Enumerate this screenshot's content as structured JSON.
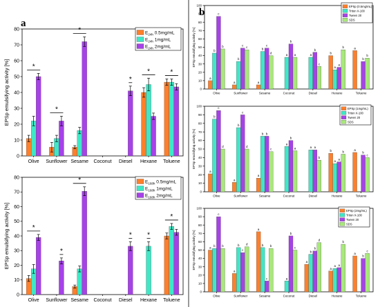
{
  "figure": {
    "panel_a_label": "a",
    "panel_b_label": "b"
  },
  "chart_data": [
    {
      "id": "a1",
      "type": "bar",
      "panel": "a",
      "categories": [
        "Olive",
        "Sunflower",
        "Sesame",
        "Coconut",
        "Diesel",
        "Hexane",
        "Toluene"
      ],
      "ylabel": "EPSp emulsifying activity [%]",
      "ylim": [
        0,
        80
      ],
      "yticks": [
        0,
        10,
        20,
        30,
        40,
        50,
        60,
        70,
        80
      ],
      "legend_position": "top-right",
      "grid": false,
      "series": [
        {
          "name": "E24h 0.5mg/mL",
          "name_base": "E",
          "name_sub": "24h",
          "name_rest": " 0.5mg/mL",
          "color": "#ff7f2a",
          "values": [
            11,
            5.5,
            5.5,
            null,
            null,
            40,
            46.5
          ],
          "errors": [
            2,
            3,
            1,
            null,
            null,
            3,
            2
          ]
        },
        {
          "name": "E24h 1mg/mL",
          "name_base": "E",
          "name_sub": "24h",
          "name_rest": " 1mg/mL",
          "color": "#3ee8c6",
          "values": [
            22,
            11,
            16,
            null,
            null,
            45,
            46.5
          ],
          "errors": [
            3,
            2,
            2,
            null,
            null,
            4,
            2
          ]
        },
        {
          "name": "E24h 2mg/mL",
          "name_base": "E",
          "name_sub": "24h",
          "name_rest": " 2mg/mL",
          "color": "#a642e8",
          "values": [
            50,
            22,
            72,
            null,
            41,
            25,
            43.5
          ],
          "errors": [
            2,
            3,
            3,
            null,
            3,
            2,
            2
          ]
        }
      ],
      "significance": [
        {
          "category": "Olive",
          "label": "*"
        },
        {
          "category": "Sunflower",
          "label": "*"
        },
        {
          "category": "Sesame",
          "label": "*"
        },
        {
          "category": "Diesel",
          "label": "*"
        },
        {
          "category": "Hexane",
          "label": "*"
        },
        {
          "category": "Toluene",
          "label": "*"
        }
      ]
    },
    {
      "id": "a2",
      "type": "bar",
      "panel": "a",
      "categories": [
        "Olive",
        "Sunflower",
        "Sesame",
        "Coconut",
        "Diesel",
        "Hexane",
        "Toluene"
      ],
      "ylabel": "EPSp emulsifying activity [%]",
      "ylim": [
        0,
        80
      ],
      "yticks": [
        0,
        10,
        20,
        30,
        40,
        50,
        60,
        70,
        80
      ],
      "legend_position": "top-right",
      "grid": false,
      "series": [
        {
          "name": "E168h 0.5mg/mL",
          "name_base": "E",
          "name_sub": "168h",
          "name_rest": " 0.5mg/mL",
          "color": "#ff7f2a",
          "values": [
            11,
            null,
            5.5,
            null,
            null,
            null,
            40
          ],
          "errors": [
            2,
            null,
            1,
            null,
            null,
            null,
            2
          ]
        },
        {
          "name": "E168h 1mg/mL",
          "name_base": "E",
          "name_sub": "168h",
          "name_rest": " 1mg/mL",
          "color": "#3ee8c6",
          "values": [
            17.5,
            null,
            17.5,
            null,
            null,
            33,
            46.5
          ],
          "errors": [
            3,
            null,
            2,
            null,
            null,
            3,
            2
          ]
        },
        {
          "name": "E168h 2mg/mL",
          "name_base": "E",
          "name_sub": "168h",
          "name_rest": " 2mg/mL",
          "color": "#a642e8",
          "values": [
            39,
            23,
            70.5,
            null,
            33,
            null,
            42.5
          ],
          "errors": [
            2,
            2,
            3,
            null,
            3,
            null,
            2
          ]
        }
      ],
      "significance": [
        {
          "category": "Olive",
          "label": "*"
        },
        {
          "category": "Sunflower",
          "label": "*"
        },
        {
          "category": "Sesame",
          "label": "*"
        },
        {
          "category": "Diesel",
          "label": "*"
        },
        {
          "category": "Hexane",
          "label": "*"
        },
        {
          "category": "Toluene",
          "label": "*"
        }
      ]
    },
    {
      "id": "b1",
      "type": "bar",
      "panel": "b",
      "categories": [
        "Olive",
        "Sunflower",
        "Sesame",
        "Coconut",
        "Diesel",
        "Hexane",
        "Toluene"
      ],
      "ylabel": "EPSp emulsifying activity [%]",
      "ylim": [
        0,
        100
      ],
      "yticks": [
        0,
        10,
        20,
        30,
        40,
        50,
        60,
        70,
        80,
        90,
        100
      ],
      "legend_position": "top-right",
      "grid": false,
      "series": [
        {
          "name": "EPSp (0.5mg/mL)",
          "color": "#ff7f2a",
          "values": [
            10,
            5,
            5,
            null,
            null,
            40,
            46
          ],
          "letters": [
            "a",
            "a",
            "a",
            "",
            "",
            "b",
            "a"
          ]
        },
        {
          "name": "Triton X-100",
          "color": "#3ee8c6",
          "values": [
            43,
            33,
            45,
            38,
            38,
            23,
            null
          ],
          "letters": [
            "b",
            "b",
            "b",
            "a",
            "a",
            "a",
            ""
          ]
        },
        {
          "name": "Tween 20",
          "color": "#a642e8",
          "values": [
            87,
            49,
            49,
            54,
            44,
            26,
            33
          ],
          "letters": [
            "c",
            "c",
            "c",
            "b",
            "b",
            "a",
            "b"
          ]
        },
        {
          "name": "SDS",
          "color": "#a8e87a",
          "values": [
            48,
            47,
            40,
            38,
            27,
            47,
            37
          ],
          "letters": [
            "b",
            "c",
            "d",
            "a",
            "c",
            "b",
            "b"
          ]
        }
      ]
    },
    {
      "id": "b2",
      "type": "bar",
      "panel": "b",
      "categories": [
        "Olive",
        "Sunflower",
        "Sesame",
        "Coconut",
        "Diesel",
        "Hexane",
        "Toluene"
      ],
      "ylabel": "EPSp emulsifying activity [%]",
      "ylim": [
        0,
        100
      ],
      "yticks": [
        0,
        10,
        20,
        30,
        40,
        50,
        60,
        70,
        80,
        90,
        100
      ],
      "legend_position": "top-right",
      "grid": false,
      "series": [
        {
          "name": "EPSp (1mg/mL)",
          "color": "#ff7f2a",
          "values": [
            21,
            11,
            16,
            null,
            null,
            45,
            46
          ],
          "letters": [
            "a",
            "a",
            "a",
            "",
            "",
            "b",
            "a"
          ]
        },
        {
          "name": "Triton X-100",
          "color": "#3ee8c6",
          "values": [
            85,
            75,
            65,
            53,
            49,
            33,
            null
          ],
          "letters": [
            "b",
            "b",
            "b",
            "a",
            "a",
            "a",
            ""
          ]
        },
        {
          "name": "Tween 20",
          "color": "#a642e8",
          "values": [
            95,
            90,
            65,
            60,
            49,
            35,
            43
          ],
          "letters": [
            "c",
            "c",
            "b",
            "b",
            "a",
            "a",
            "b"
          ]
        },
        {
          "name": "SDS",
          "color": "#a8e87a",
          "values": [
            50,
            50,
            47,
            48,
            37,
            44,
            40
          ],
          "letters": [
            "d",
            "d",
            "c",
            "a",
            "b",
            "b",
            "c"
          ]
        }
      ]
    },
    {
      "id": "b3",
      "type": "bar",
      "panel": "b",
      "categories": [
        "Olive",
        "Sunflower",
        "Sesame",
        "Coconut",
        "Diesel",
        "Hexane",
        "Toluene"
      ],
      "ylabel": "EPSp emulsifying activity [%]",
      "ylim": [
        0,
        100
      ],
      "yticks": [
        0,
        10,
        20,
        30,
        40,
        50,
        60,
        70,
        80,
        90,
        100
      ],
      "legend_position": "top-right",
      "grid": false,
      "series": [
        {
          "name": "EPSp (2mg/mL)",
          "color": "#ff7f2a",
          "values": [
            50,
            22,
            72,
            null,
            33,
            25,
            43
          ],
          "letters": [
            "a",
            "a",
            "a",
            "",
            "a",
            "a",
            "a"
          ]
        },
        {
          "name": "Triton X-100",
          "color": "#3ee8c6",
          "values": [
            52,
            53,
            53,
            13,
            45,
            28,
            null
          ],
          "letters": [
            "b",
            "b",
            "b",
            "a",
            "b",
            "a",
            ""
          ]
        },
        {
          "name": "Tween 20",
          "color": "#a642e8",
          "values": [
            90,
            47,
            13,
            67,
            49,
            29,
            40
          ],
          "letters": [
            "c",
            "c",
            "c",
            "b",
            "b",
            "a",
            "b"
          ]
        },
        {
          "name": "SDS",
          "color": "#a8e87a",
          "values": [
            52,
            54,
            52,
            50,
            59,
            57,
            46
          ],
          "letters": [
            "b",
            "d",
            "b",
            "c",
            "d",
            "b",
            "c"
          ]
        }
      ]
    }
  ]
}
